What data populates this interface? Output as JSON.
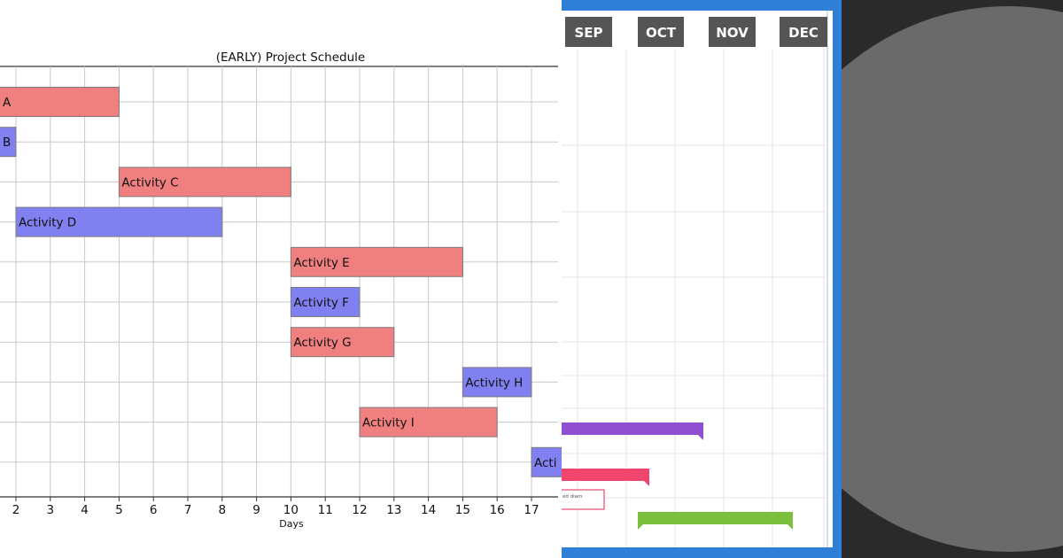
{
  "chart_data": {
    "type": "bar",
    "title": "(EARLY) Project Schedule",
    "xlabel": "Days",
    "ylabel": "",
    "xlim": [
      1.5,
      18.2
    ],
    "grid": true,
    "x_ticks": [
      2,
      3,
      4,
      5,
      6,
      7,
      8,
      9,
      10,
      11,
      12,
      13,
      14,
      15,
      16,
      17
    ],
    "tasks": [
      {
        "label": "A",
        "start": 0,
        "end": 5
      },
      {
        "label": "B",
        "start": 0,
        "end": 2
      },
      {
        "label": "Activity C",
        "start": 5,
        "end": 10
      },
      {
        "label": "Activity D",
        "start": 2,
        "end": 8
      },
      {
        "label": "Activity E",
        "start": 10,
        "end": 15
      },
      {
        "label": "Activity F",
        "start": 10,
        "end": 12
      },
      {
        "label": "Activity G",
        "start": 10,
        "end": 13
      },
      {
        "label": "Activity H",
        "start": 15,
        "end": 17
      },
      {
        "label": "Activity I",
        "start": 12,
        "end": 16
      },
      {
        "label": "Acti",
        "start": 17,
        "end": 19
      }
    ],
    "colors": {
      "odd": "#f08080",
      "even": "#8080f0"
    }
  },
  "timeline": {
    "months": [
      "SEP",
      "OCT",
      "NOV",
      "DEC"
    ],
    "note": "ed diam",
    "colors": {
      "frame": "#2f7fd9",
      "month_bg": "#555555",
      "purple": "#8e4fd0",
      "pink": "#f0466e",
      "green": "#7cbf3d"
    }
  }
}
